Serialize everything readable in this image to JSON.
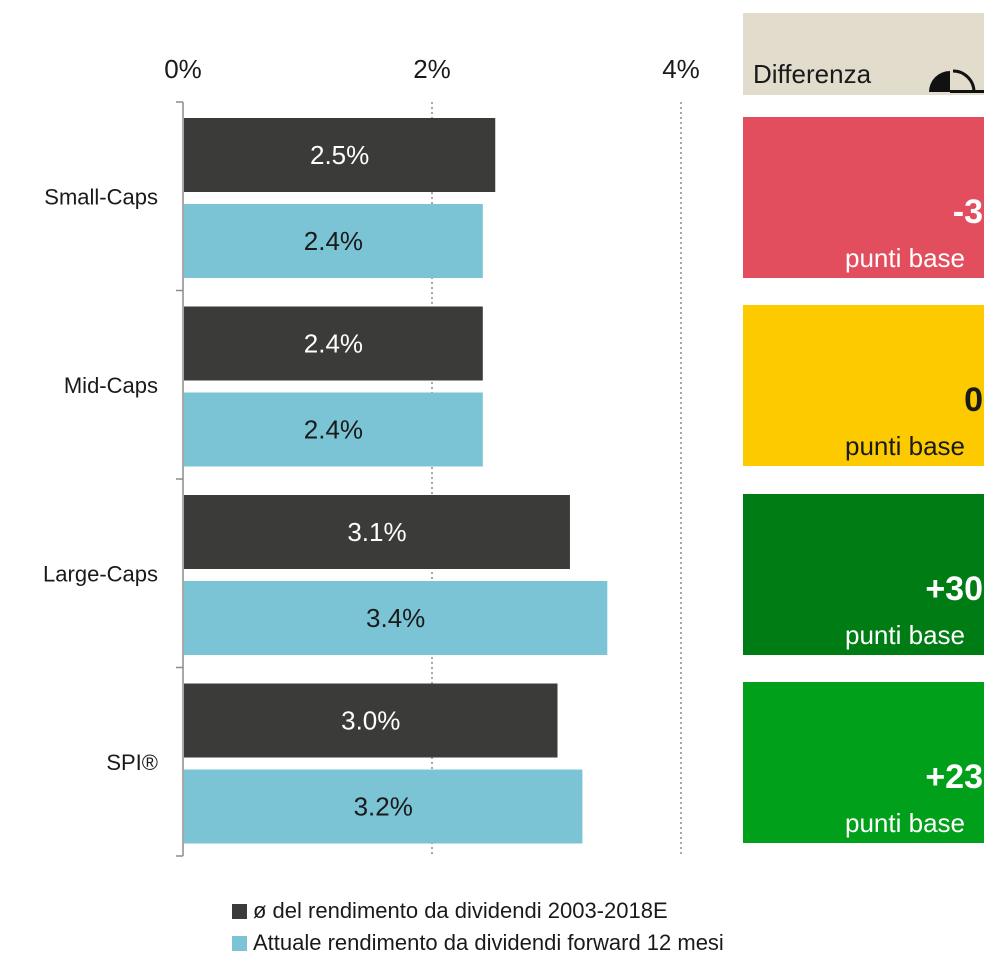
{
  "chart_data": {
    "type": "bar",
    "orientation": "horizontal",
    "categories": [
      "Small-Caps",
      "Mid-Caps",
      "Large-Caps",
      "SPI®"
    ],
    "series": [
      {
        "name": "ø del rendimento da dividendi 2003-2018E",
        "values": [
          2.5,
          2.4,
          3.1,
          3.0
        ],
        "labels": [
          "2.5%",
          "2.4%",
          "3.1%",
          "3.0%"
        ],
        "color": "#3b3c39"
      },
      {
        "name": "Attuale rendimento da dividendi forward 12 mesi",
        "values": [
          2.4,
          2.4,
          3.4,
          3.2
        ],
        "labels": [
          "2.4%",
          "2.4%",
          "3.4%",
          "3.2%"
        ],
        "color": "#7ac4d5"
      }
    ],
    "x_ticks": [
      0,
      2,
      4
    ],
    "x_tick_labels": [
      "0%",
      "2%",
      "4%"
    ],
    "xlim": [
      0,
      4
    ],
    "grid": "vertical dotted at 2% and 4%",
    "legend_position": "bottom"
  },
  "difference_panel": {
    "header_label": "Differenza",
    "header_icon": "gauge-icon",
    "header_color": "#e1dccb",
    "items": [
      {
        "value": "-3",
        "unit": "punti base",
        "color": "#e34e5e"
      },
      {
        "value": "0",
        "unit": "punti base",
        "color": "#fdca00"
      },
      {
        "value": "+30",
        "unit": "punti base",
        "color": "#007c14"
      },
      {
        "value": "+23",
        "unit": "punti base",
        "color": "#00a01b"
      }
    ]
  }
}
